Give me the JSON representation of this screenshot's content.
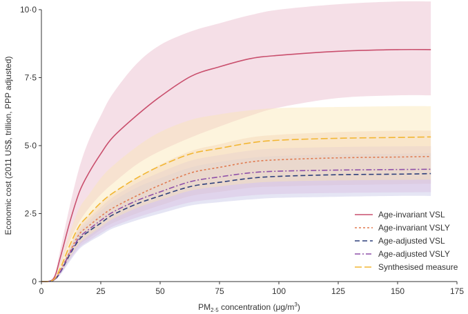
{
  "chart_data": {
    "type": "line",
    "xlabel": "PM2·5 concentration (μg/m3)",
    "ylabel": "Economic cost (2011 US$, trillion, PPP adjusted)",
    "xlim": [
      0,
      175
    ],
    "ylim": [
      0,
      10
    ],
    "x_ticks": [
      0,
      25,
      50,
      75,
      100,
      125,
      150,
      175
    ],
    "x_tick_labels": [
      "0",
      "25",
      "50",
      "75",
      "100",
      "125",
      "150",
      "175"
    ],
    "y_ticks": [
      0,
      2.5,
      5,
      7.5,
      10
    ],
    "y_tick_labels": [
      "0",
      "2·5",
      "5·0",
      "7·5",
      "10·0"
    ],
    "grid": false,
    "legend_position": "bottom-right",
    "x": [
      0,
      5,
      8,
      12,
      16,
      20,
      25,
      30,
      40,
      50,
      63,
      75,
      88,
      100,
      125,
      150,
      164
    ],
    "series": [
      {
        "name": "Age-invariant VSL",
        "color": "#c94f6d",
        "dash": "solid",
        "values": [
          0,
          0.1,
          0.9,
          2.2,
          3.3,
          4.0,
          4.7,
          5.3,
          6.1,
          6.8,
          7.55,
          7.9,
          8.2,
          8.32,
          8.47,
          8.53,
          8.53
        ],
        "lower": [
          0,
          0.08,
          0.6,
          1.5,
          2.2,
          2.7,
          3.2,
          3.6,
          4.3,
          4.8,
          5.3,
          5.7,
          6.1,
          6.4,
          6.75,
          6.85,
          6.85
        ],
        "upper": [
          0,
          0.13,
          1.2,
          2.8,
          4.2,
          5.2,
          6.1,
          6.9,
          8.0,
          8.7,
          9.2,
          9.5,
          9.8,
          10.0,
          10.2,
          10.3,
          10.3
        ],
        "band_color": "#e9b7c9"
      },
      {
        "name": "Age-invariant VSLY",
        "color": "#e07a4f",
        "dash": "dotted",
        "values": [
          0,
          0.05,
          0.4,
          1.1,
          1.75,
          2.05,
          2.4,
          2.7,
          3.15,
          3.55,
          4.0,
          4.2,
          4.4,
          4.48,
          4.55,
          4.58,
          4.6
        ],
        "lower": [
          0,
          0.04,
          0.3,
          0.85,
          1.35,
          1.6,
          1.9,
          2.15,
          2.5,
          2.8,
          3.15,
          3.3,
          3.45,
          3.5,
          3.55,
          3.58,
          3.6
        ],
        "upper": [
          0,
          0.06,
          0.5,
          1.3,
          2.1,
          2.45,
          2.9,
          3.25,
          3.8,
          4.3,
          4.8,
          5.05,
          5.3,
          5.4,
          5.5,
          5.55,
          5.55
        ],
        "band_color": "#f0c8b5"
      },
      {
        "name": "Age-adjusted VSL",
        "color": "#2c3e7a",
        "dash": "dash",
        "values": [
          0,
          0.04,
          0.35,
          1.0,
          1.55,
          1.85,
          2.15,
          2.45,
          2.85,
          3.15,
          3.5,
          3.65,
          3.8,
          3.87,
          3.93,
          3.95,
          3.97
        ],
        "lower": [
          0,
          0.03,
          0.25,
          0.75,
          1.2,
          1.45,
          1.7,
          1.95,
          2.25,
          2.5,
          2.8,
          2.92,
          3.02,
          3.08,
          3.12,
          3.15,
          3.15
        ],
        "upper": [
          0,
          0.05,
          0.45,
          1.2,
          1.85,
          2.2,
          2.6,
          2.95,
          3.45,
          3.8,
          4.2,
          4.4,
          4.55,
          4.62,
          4.68,
          4.7,
          4.72
        ],
        "band_color": "#c6c6e6"
      },
      {
        "name": "Age-adjusted VSLY",
        "color": "#8e4fa8",
        "dash": "dashdot",
        "values": [
          0,
          0.045,
          0.37,
          1.05,
          1.62,
          1.92,
          2.25,
          2.55,
          2.97,
          3.3,
          3.68,
          3.85,
          4.0,
          4.06,
          4.1,
          4.12,
          4.13
        ],
        "lower": [
          0,
          0.035,
          0.28,
          0.8,
          1.25,
          1.5,
          1.78,
          2.02,
          2.35,
          2.62,
          2.92,
          3.05,
          3.17,
          3.22,
          3.26,
          3.28,
          3.29
        ],
        "upper": [
          0,
          0.055,
          0.47,
          1.27,
          1.95,
          2.32,
          2.73,
          3.1,
          3.62,
          4.02,
          4.45,
          4.65,
          4.82,
          4.9,
          4.95,
          4.97,
          4.98
        ],
        "band_color": "#d9bfe3"
      },
      {
        "name": "Synthesised measure",
        "color": "#f2b632",
        "dash": "longdash",
        "values": [
          0,
          0.06,
          0.5,
          1.35,
          2.05,
          2.45,
          2.9,
          3.25,
          3.8,
          4.25,
          4.7,
          4.9,
          5.1,
          5.2,
          5.27,
          5.3,
          5.32
        ],
        "lower": [
          0,
          0.04,
          0.32,
          0.9,
          1.4,
          1.7,
          2.0,
          2.3,
          2.7,
          3.0,
          3.35,
          3.5,
          3.62,
          3.68,
          3.72,
          3.74,
          3.75
        ],
        "upper": [
          0,
          0.08,
          0.7,
          1.8,
          2.7,
          3.2,
          3.8,
          4.25,
          4.95,
          5.5,
          5.95,
          6.15,
          6.3,
          6.38,
          6.42,
          6.45,
          6.45
        ],
        "band_color": "#fbe6b3"
      }
    ]
  }
}
